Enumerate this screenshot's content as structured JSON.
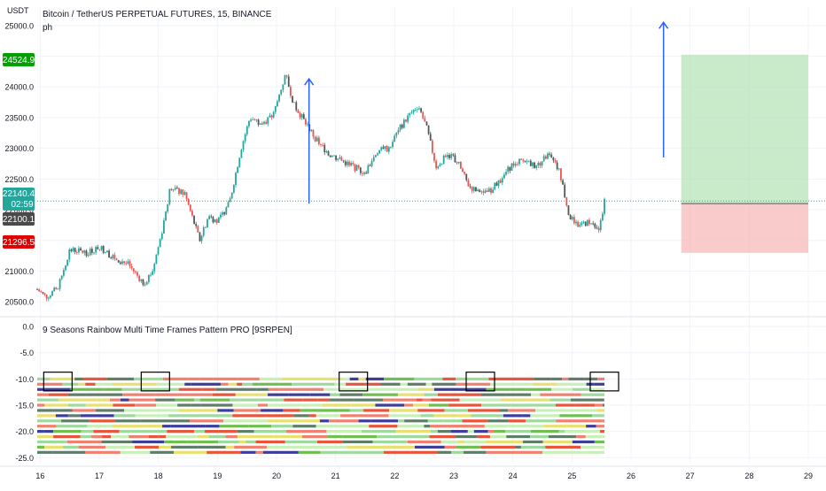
{
  "header": {
    "unit": "USDT",
    "title": "Bitcoin / TetherUS PERPETUAL FUTURES, 15, BINANCE",
    "subtitle": "ph"
  },
  "indicator": {
    "title": "9 Seasons Rainbow Multi Time Frames Pattern PRO [9SRPEN]"
  },
  "colors": {
    "candle_up": "#26a69a",
    "candle_down": "#ef5350",
    "candle_dark": "#555555",
    "profit_zone": "#b7e4b8",
    "loss_zone": "#f8b9b9",
    "arrow": "#2962ff",
    "price_line": "#26a69a",
    "stripe_palette": [
      "#9ed99e",
      "#e8553d",
      "#607d6a",
      "#f08070",
      "#c8f0b8",
      "#e8e070",
      "#3d3d9a",
      "#6fbf50"
    ]
  },
  "badges": {
    "last_price": "22140.4",
    "countdown": "02:59",
    "prev_close": "22100.1",
    "take_profit": "24524.9",
    "stop_loss": "21296.5"
  },
  "chart_data": [
    {
      "type": "candlestick",
      "title": "Bitcoin / TetherUS PERPETUAL FUTURES, 15, BINANCE",
      "ylabel": "USDT",
      "ylim": [
        20300,
        25300
      ],
      "yticks": [
        20500,
        21000,
        21500,
        22000,
        22500,
        23000,
        23500,
        24000,
        24500,
        25000
      ],
      "ytick_labels": [
        "20500.0",
        "21000.0",
        "21500.0",
        "22000.0",
        "22500.0",
        "23000.0",
        "23500.0",
        "24000.0",
        "24500.0",
        "25000.0"
      ],
      "x_ticks": [
        16,
        17,
        18,
        19,
        20,
        21,
        22,
        23,
        24,
        25,
        26,
        27,
        28,
        29
      ],
      "x_tick_labels": [
        "16",
        "17",
        "18",
        "19",
        "20",
        "21",
        "22",
        "23",
        "24",
        "25",
        "26",
        "27",
        "28",
        "29"
      ],
      "xlim": [
        15.95,
        29.3
      ],
      "price_path": [
        [
          15.95,
          20700
        ],
        [
          16.1,
          20580
        ],
        [
          16.3,
          20720
        ],
        [
          16.5,
          21350
        ],
        [
          16.8,
          21300
        ],
        [
          17.0,
          21400
        ],
        [
          17.2,
          21250
        ],
        [
          17.5,
          21100
        ],
        [
          17.75,
          20800
        ],
        [
          17.9,
          21000
        ],
        [
          18.05,
          21600
        ],
        [
          18.2,
          22350
        ],
        [
          18.45,
          22250
        ],
        [
          18.7,
          21500
        ],
        [
          18.85,
          21900
        ],
        [
          19.0,
          21800
        ],
        [
          19.2,
          22100
        ],
        [
          19.4,
          23000
        ],
        [
          19.55,
          23500
        ],
        [
          19.75,
          23400
        ],
        [
          19.95,
          23550
        ],
        [
          20.15,
          24200
        ],
        [
          20.3,
          23700
        ],
        [
          20.5,
          23400
        ],
        [
          20.7,
          23100
        ],
        [
          20.9,
          22900
        ],
        [
          21.1,
          22800
        ],
        [
          21.3,
          22700
        ],
        [
          21.5,
          22600
        ],
        [
          21.7,
          22950
        ],
        [
          21.9,
          23000
        ],
        [
          22.1,
          23350
        ],
        [
          22.25,
          23550
        ],
        [
          22.4,
          23700
        ],
        [
          22.55,
          23300
        ],
        [
          22.7,
          22700
        ],
        [
          22.9,
          22900
        ],
        [
          23.05,
          22800
        ],
        [
          23.25,
          22400
        ],
        [
          23.45,
          22250
        ],
        [
          23.6,
          22300
        ],
        [
          23.8,
          22500
        ],
        [
          24.0,
          22750
        ],
        [
          24.2,
          22800
        ],
        [
          24.4,
          22700
        ],
        [
          24.6,
          22900
        ],
        [
          24.8,
          22600
        ],
        [
          24.95,
          21900
        ],
        [
          25.1,
          21750
        ],
        [
          25.3,
          21800
        ],
        [
          25.45,
          21650
        ],
        [
          25.5,
          21900
        ],
        [
          25.55,
          22140
        ]
      ],
      "position": {
        "x_range": [
          26.85,
          29.0
        ],
        "entry": 22100.1,
        "take_profit": 24524.9,
        "stop_loss": 21296.5
      },
      "arrows": [
        {
          "x": 20.55,
          "from": 22100,
          "to": 24130
        },
        {
          "x": 26.55,
          "from": 22850,
          "to": 25050
        }
      ],
      "annotations": [
        "22140.4",
        "02:59",
        "22100.1",
        "24524.9",
        "21296.5"
      ]
    },
    {
      "type": "heatmap",
      "title": "9 Seasons Rainbow Multi Time Frames Pattern PRO [9SRPEN]",
      "ylim": [
        -25.8,
        1.2
      ],
      "yticks": [
        0,
        -5,
        -10,
        -15,
        -20,
        -25
      ],
      "ytick_labels": [
        "0.0",
        "-5.0",
        "-10.0",
        "-15.0",
        "-20.0",
        "-25.0"
      ],
      "x_range": [
        15.95,
        25.55
      ],
      "rows": [
        -10,
        -11,
        -12,
        -13,
        -14,
        -15,
        -16,
        -17,
        -18,
        -19,
        -20,
        -21,
        -22,
        -23,
        -24
      ],
      "highlight_boxes": [
        16.3,
        17.95,
        21.3,
        23.45,
        25.55
      ]
    }
  ]
}
